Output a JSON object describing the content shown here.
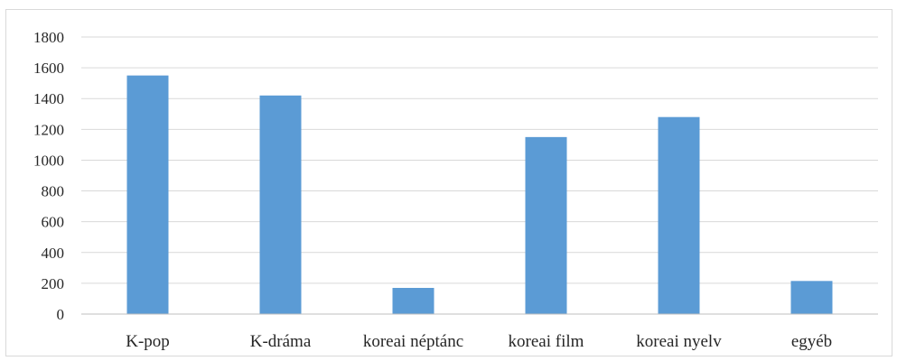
{
  "chart_data": {
    "type": "bar",
    "categories": [
      "K-pop",
      "K-dráma",
      "koreai néptánc",
      "koreai film",
      "koreai nyelv",
      "egyéb"
    ],
    "series": [
      {
        "values": [
          1550,
          1420,
          170,
          1150,
          1280,
          215
        ],
        "color": "#5b9bd5"
      }
    ],
    "title": "",
    "xlabel": "",
    "ylabel": "",
    "ylim": [
      0,
      1800
    ],
    "yticks": [
      "0",
      "200",
      "400",
      "600",
      "800",
      "1000",
      "1200",
      "1400",
      "1600",
      "1800"
    ],
    "grid": true,
    "legend": "none"
  }
}
